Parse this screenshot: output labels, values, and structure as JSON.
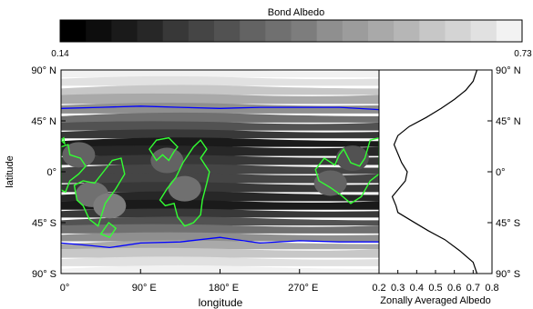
{
  "chart_data": [
    {
      "type": "heatmap",
      "colorbar": {
        "title": "Bond Albedo",
        "min_label": "0.14",
        "max_label": "0.73",
        "range": [
          0.14,
          0.73
        ],
        "levels": [
          0.14,
          0.17,
          0.2,
          0.23,
          0.27,
          0.3,
          0.33,
          0.37,
          0.4,
          0.43,
          0.47,
          0.5,
          0.53,
          0.56,
          0.6,
          0.63,
          0.66,
          0.7
        ],
        "colormap": "grayscale"
      },
      "xlabel": "longitude",
      "ylabel": "latitude",
      "xlim": [
        0,
        360
      ],
      "ylim": [
        -90,
        90
      ],
      "xticks": [
        "0°",
        "90° E",
        "180° E",
        "270° E"
      ],
      "yticks_left": [
        "90° N",
        "45° N",
        "0°",
        "45° S",
        "90° S"
      ],
      "yticks_right": [
        "90° N",
        "45° N",
        "0°",
        "45° S",
        "90° S"
      ],
      "zonal_bands": [
        {
          "lat": 87,
          "albedo": 0.7
        },
        {
          "lat": 80,
          "albedo": 0.66
        },
        {
          "lat": 72,
          "albedo": 0.6
        },
        {
          "lat": 64,
          "albedo": 0.53
        },
        {
          "lat": 56,
          "albedo": 0.47
        },
        {
          "lat": 47,
          "albedo": 0.4
        },
        {
          "lat": 40,
          "albedo": 0.33
        },
        {
          "lat": 33,
          "albedo": 0.27
        },
        {
          "lat": 26,
          "albedo": 0.2
        },
        {
          "lat": 18,
          "albedo": 0.23
        },
        {
          "lat": 10,
          "albedo": 0.27
        },
        {
          "lat": 2,
          "albedo": 0.3
        },
        {
          "lat": -6,
          "albedo": 0.3
        },
        {
          "lat": -14,
          "albedo": 0.27
        },
        {
          "lat": -22,
          "albedo": 0.23
        },
        {
          "lat": -30,
          "albedo": 0.2
        },
        {
          "lat": -37,
          "albedo": 0.27
        },
        {
          "lat": -44,
          "albedo": 0.33
        },
        {
          "lat": -51,
          "albedo": 0.4
        },
        {
          "lat": -58,
          "albedo": 0.47
        },
        {
          "lat": -65,
          "albedo": 0.53
        },
        {
          "lat": -72,
          "albedo": 0.6
        },
        {
          "lat": -80,
          "albedo": 0.66
        },
        {
          "lat": -87,
          "albedo": 0.7
        }
      ],
      "land_patches": [
        {
          "lon": 20,
          "lat": 15,
          "albedo": 0.37
        },
        {
          "lon": 35,
          "lat": -20,
          "albedo": 0.4
        },
        {
          "lon": 55,
          "lat": -30,
          "albedo": 0.43
        },
        {
          "lon": 120,
          "lat": 10,
          "albedo": 0.37
        },
        {
          "lon": 140,
          "lat": -15,
          "albedo": 0.4
        },
        {
          "lon": 305,
          "lat": -10,
          "albedo": 0.37
        },
        {
          "lon": 330,
          "lat": 12,
          "albedo": 0.33
        }
      ],
      "overlays": [
        {
          "name": "sea ice edge",
          "color": "#0000ff",
          "path_north": [
            [
              0,
              56
            ],
            [
              45,
              57
            ],
            [
              90,
              58
            ],
            [
              135,
              57
            ],
            [
              180,
              56
            ],
            [
              225,
              57
            ],
            [
              270,
              57
            ],
            [
              315,
              57
            ],
            [
              360,
              55
            ]
          ],
          "path_south": [
            [
              0,
              -63
            ],
            [
              30,
              -65
            ],
            [
              55,
              -67
            ],
            [
              90,
              -63
            ],
            [
              135,
              -62
            ],
            [
              180,
              -58
            ],
            [
              225,
              -63
            ],
            [
              270,
              -61
            ],
            [
              315,
              -62
            ],
            [
              360,
              -62
            ]
          ]
        },
        {
          "name": "continents",
          "color": "#33ff33"
        }
      ]
    },
    {
      "type": "line",
      "xlabel": "Zonally Averaged Albedo",
      "xticks": [
        "0.2",
        "0.3",
        "0.4",
        "0.5",
        "0.6",
        "0.7",
        "0.8"
      ],
      "xlim": [
        0.2,
        0.8
      ],
      "ylim": [
        -90,
        90
      ],
      "x": [
        0.72,
        0.7,
        0.66,
        0.6,
        0.53,
        0.45,
        0.36,
        0.3,
        0.28,
        0.3,
        0.32,
        0.35,
        0.34,
        0.3,
        0.27,
        0.29,
        0.3,
        0.38,
        0.46,
        0.55,
        0.63,
        0.7,
        0.72
      ],
      "y": [
        90,
        80,
        72,
        64,
        56,
        48,
        40,
        32,
        24,
        16,
        8,
        0,
        -8,
        -16,
        -22,
        -30,
        -36,
        -44,
        -52,
        -60,
        -70,
        -80,
        -90
      ]
    }
  ]
}
